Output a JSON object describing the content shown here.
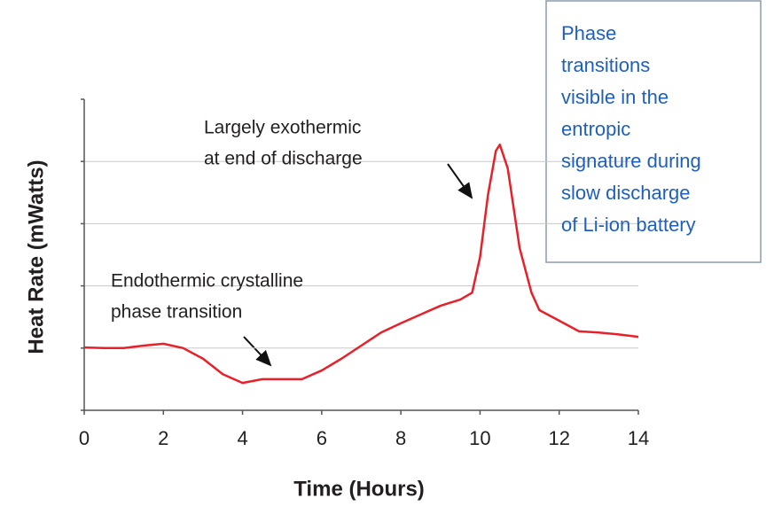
{
  "chart_data": {
    "type": "line",
    "x_label": "Time (Hours)",
    "y_label": "Heat Rate (mWatts)",
    "x": [
      0,
      0.5,
      1,
      1.5,
      2,
      2.5,
      3,
      3.5,
      4,
      4.5,
      5,
      5.5,
      6,
      6.5,
      7,
      7.5,
      8,
      8.5,
      9,
      9.5,
      9.8,
      10,
      10.2,
      10.4,
      10.5,
      10.7,
      11,
      11.3,
      11.5,
      12,
      12.5,
      13,
      13.5,
      14
    ],
    "series": [
      {
        "name": "Heat Rate",
        "color": "#e8202a",
        "values": [
          1.01,
          1.0,
          1.0,
          1.04,
          1.07,
          1.0,
          0.83,
          0.58,
          0.44,
          0.5,
          0.5,
          0.5,
          0.64,
          0.83,
          1.04,
          1.25,
          1.4,
          1.54,
          1.68,
          1.78,
          1.89,
          2.46,
          3.46,
          4.17,
          4.27,
          3.89,
          2.61,
          1.89,
          1.61,
          1.44,
          1.27,
          1.25,
          1.22,
          1.18
        ]
      }
    ],
    "xlim": [
      0,
      14
    ],
    "xticks": [
      0,
      2,
      4,
      6,
      8,
      10,
      12,
      14
    ],
    "ylim": [
      0,
      5
    ],
    "yticks": [
      0,
      1,
      2,
      3,
      4,
      5
    ],
    "grid": true,
    "annotations": [
      {
        "lines": [
          "Largely exothermic",
          "at end of discharge"
        ]
      },
      {
        "lines": [
          "Endothermic crystalline",
          "phase transition"
        ]
      }
    ],
    "callout_lines": [
      "Phase",
      "transitions",
      "visible in the",
      "entropic",
      "signature during",
      "slow discharge",
      "of Li-ion battery"
    ]
  }
}
